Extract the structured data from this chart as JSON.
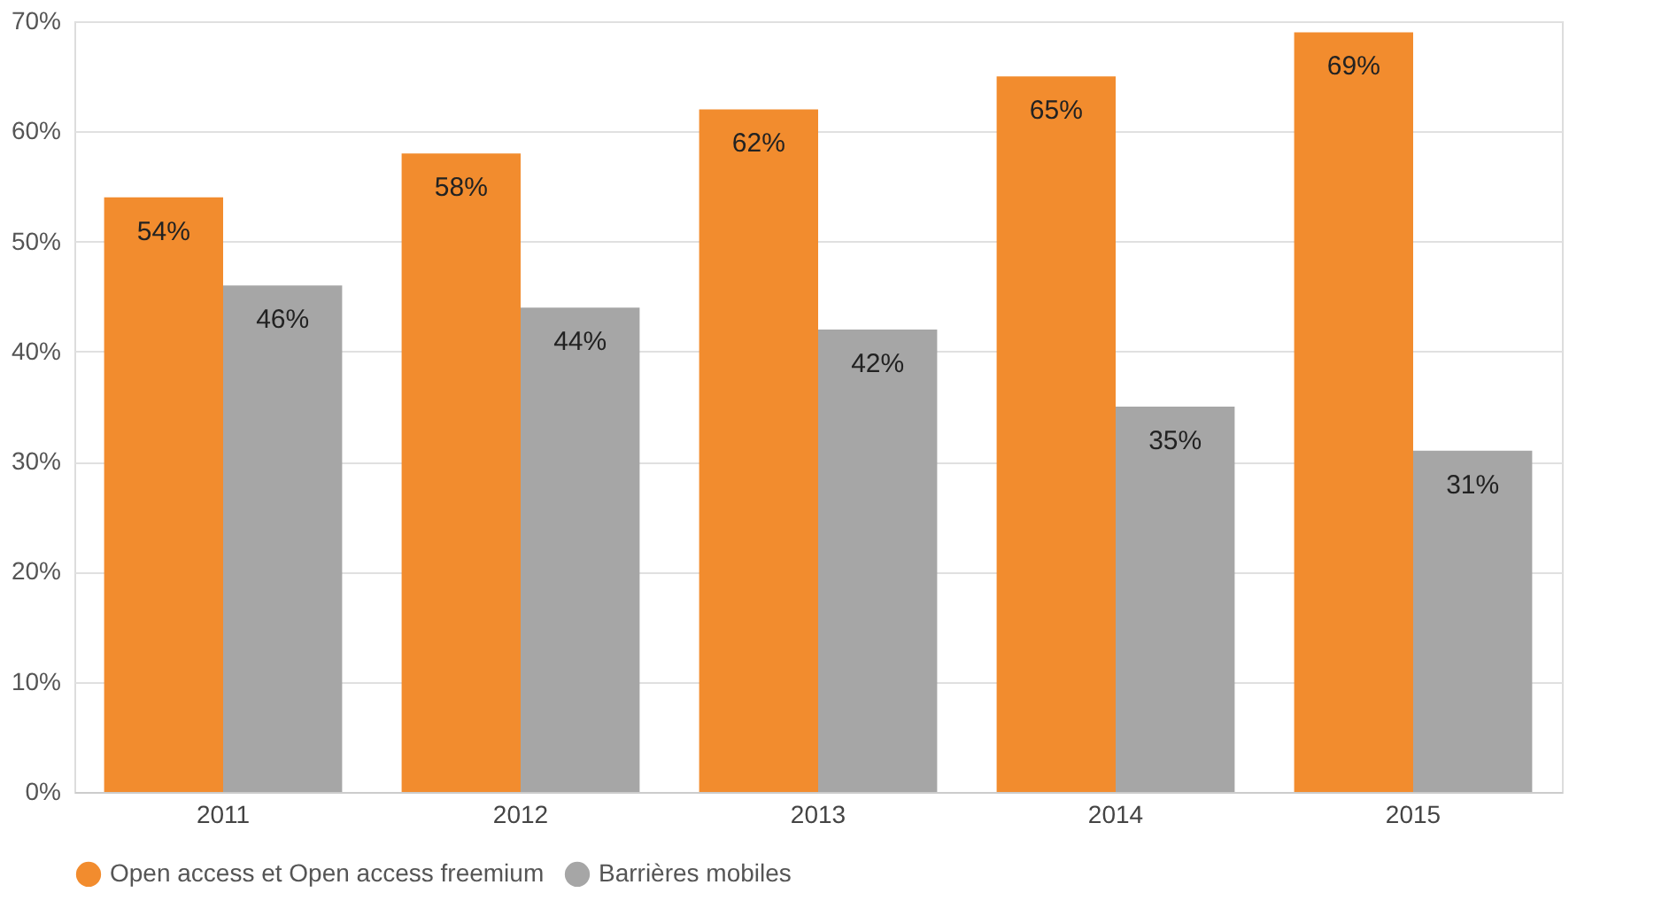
{
  "chart_data": {
    "type": "bar",
    "categories": [
      "2011",
      "2012",
      "2013",
      "2014",
      "2015"
    ],
    "series": [
      {
        "name": "Open access et Open access freemium",
        "color": "#f28c2e",
        "values": [
          54,
          58,
          62,
          65,
          69
        ],
        "value_labels": [
          "54%",
          "58%",
          "62%",
          "65%",
          "69%"
        ]
      },
      {
        "name": "Barrières mobiles",
        "color": "#a6a6a6",
        "values": [
          46,
          44,
          42,
          35,
          31
        ],
        "value_labels": [
          "46%",
          "44%",
          "42%",
          "35%",
          "31%"
        ]
      }
    ],
    "ylim": [
      0,
      70
    ],
    "yticks": [
      {
        "value": 0,
        "label": "0%"
      },
      {
        "value": 10,
        "label": "10%"
      },
      {
        "value": 20,
        "label": "20%"
      },
      {
        "value": 30,
        "label": "30%"
      },
      {
        "value": 40,
        "label": "40%"
      },
      {
        "value": 50,
        "label": "50%"
      },
      {
        "value": 60,
        "label": "60%"
      },
      {
        "value": 70,
        "label": "70%"
      }
    ],
    "grid": "y",
    "legend": "bottom"
  }
}
